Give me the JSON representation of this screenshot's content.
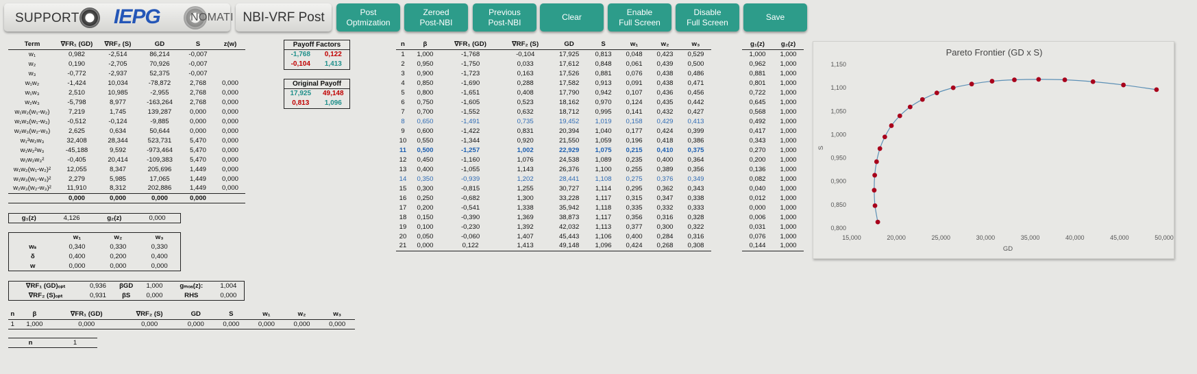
{
  "header": {
    "support_label": "SUPPORT",
    "iepg_label": "IEPG",
    "nomati_label": "NOMATI",
    "title": "NBI-VRF Post",
    "buttons": [
      "Post\nOptmization",
      "Zeroed\nPost-NBI",
      "Previous\nPost-NBI",
      "Clear",
      "Enable\nFull Screen",
      "Disable\nFull Screen",
      "Save"
    ]
  },
  "terms": {
    "headers": [
      "Term",
      "∇FR₁ (GD)",
      "∇RF₂ (S)",
      "GD",
      "S",
      "z(w)"
    ],
    "rows": [
      [
        "w₁",
        "0,982",
        "-2,514",
        "86,214",
        "-0,007",
        ""
      ],
      [
        "w₂",
        "0,190",
        "-2,705",
        "70,926",
        "-0,007",
        ""
      ],
      [
        "w₃",
        "-0,772",
        "-2,937",
        "52,375",
        "-0,007",
        ""
      ],
      [
        "w₁w₂",
        "-1,424",
        "10,034",
        "-78,872",
        "2,768",
        "0,000"
      ],
      [
        "w₁w₃",
        "2,510",
        "10,985",
        "-2,955",
        "2,768",
        "0,000"
      ],
      [
        "w₂w₃",
        "-5,798",
        "8,977",
        "-163,264",
        "2,768",
        "0,000"
      ],
      [
        "w₁w₂(w₁-w₂)",
        "7,219",
        "1,745",
        "139,287",
        "0,000",
        "0,000"
      ],
      [
        "w₁w₃(w₁-w₃)",
        "-0,512",
        "-0,124",
        "-9,885",
        "0,000",
        "0,000"
      ],
      [
        "w₂w₃(w₂-w₃)",
        "2,625",
        "0,634",
        "50,644",
        "0,000",
        "0,000"
      ],
      [
        "w₁²w₂w₃",
        "32,408",
        "28,344",
        "523,731",
        "5,470",
        "0,000"
      ],
      [
        "w₁w₂²w₃",
        "-45,188",
        "9,592",
        "-973,464",
        "5,470",
        "0,000"
      ],
      [
        "w₁w₂w₃²",
        "-0,405",
        "20,414",
        "-109,383",
        "5,470",
        "0,000"
      ],
      [
        "w₁w₂(w₁-w₂)²",
        "12,055",
        "8,347",
        "205,696",
        "1,449",
        "0,000"
      ],
      [
        "w₁w₃(w₁-w₃)²",
        "2,279",
        "5,985",
        "17,065",
        "1,449",
        "0,000"
      ],
      [
        "w₂w₃(w₂-w₃)²",
        "11,910",
        "8,312",
        "202,886",
        "1,449",
        "0,000"
      ]
    ],
    "totals": [
      "",
      "0,000",
      "0,000",
      "0,000",
      "0,000",
      ""
    ]
  },
  "g_box": {
    "g1_label": "g₁(z)",
    "g1_value": "4,126",
    "g2_label": "g₂(z)",
    "g2_value": "0,000"
  },
  "w_box": {
    "headers": [
      "",
      "w₁",
      "w₂",
      "w₃"
    ],
    "rows": [
      [
        "wₛ",
        "0,340",
        "0,330",
        "0,330"
      ],
      [
        "δ",
        "0,400",
        "0,200",
        "0,400"
      ],
      [
        "w",
        "0,000",
        "0,000",
        "0,000"
      ]
    ]
  },
  "opt_box": {
    "rows": [
      [
        "∇RF₁ (GD)ₒₚₜ",
        "0,936",
        "βGD",
        "1,000",
        "gₘₒₐ(z):",
        "1,004"
      ],
      [
        "∇RF₂ (S)ₒₚₜ",
        "0,931",
        "βS",
        "0,000",
        "RHS",
        "0,000"
      ]
    ]
  },
  "n_table": {
    "headers": [
      "n",
      "β",
      "∇FR₁ (GD)",
      "∇RF₂ (S)",
      "GD",
      "S",
      "w₁",
      "w₂",
      "w₃"
    ],
    "row": [
      "1",
      "1,000",
      "0,000",
      "0,000",
      "0,000",
      "0,000",
      "0,000",
      "0,000",
      "0,000"
    ]
  },
  "n_count": {
    "label": "n",
    "value": "1"
  },
  "payoff": {
    "title": "Payoff Factors",
    "r1": [
      "-1,768",
      "0,122"
    ],
    "r2": [
      "-0,104",
      "1,413"
    ]
  },
  "orig_payoff": {
    "title": "Original Payoff",
    "r1": [
      "17,925",
      "49,148"
    ],
    "r2": [
      "0,813",
      "1,096"
    ]
  },
  "main": {
    "headers": [
      "n",
      "β",
      "∇FR₁ (GD)",
      "∇RF₂ (S)",
      "GD",
      "S",
      "w₁",
      "w₂",
      "w₃"
    ],
    "rows": [
      [
        "1",
        "1,000",
        "-1,768",
        "-0,104",
        "17,925",
        "0,813",
        "0,048",
        "0,423",
        "0,529"
      ],
      [
        "2",
        "0,950",
        "-1,750",
        "0,033",
        "17,612",
        "0,848",
        "0,061",
        "0,439",
        "0,500"
      ],
      [
        "3",
        "0,900",
        "-1,723",
        "0,163",
        "17,526",
        "0,881",
        "0,076",
        "0,438",
        "0,486"
      ],
      [
        "4",
        "0,850",
        "-1,690",
        "0,288",
        "17,582",
        "0,913",
        "0,091",
        "0,438",
        "0,471"
      ],
      [
        "5",
        "0,800",
        "-1,651",
        "0,408",
        "17,790",
        "0,942",
        "0,107",
        "0,436",
        "0,456"
      ],
      [
        "6",
        "0,750",
        "-1,605",
        "0,523",
        "18,162",
        "0,970",
        "0,124",
        "0,435",
        "0,442"
      ],
      [
        "7",
        "0,700",
        "-1,552",
        "0,632",
        "18,712",
        "0,995",
        "0,141",
        "0,432",
        "0,427"
      ],
      [
        "8",
        "0,650",
        "-1,491",
        "0,735",
        "19,452",
        "1,019",
        "0,158",
        "0,429",
        "0,413"
      ],
      [
        "9",
        "0,600",
        "-1,422",
        "0,831",
        "20,394",
        "1,040",
        "0,177",
        "0,424",
        "0,399"
      ],
      [
        "10",
        "0,550",
        "-1,344",
        "0,920",
        "21,550",
        "1,059",
        "0,196",
        "0,418",
        "0,386"
      ],
      [
        "11",
        "0,500",
        "-1,257",
        "1,002",
        "22,929",
        "1,075",
        "0,215",
        "0,410",
        "0,375"
      ],
      [
        "12",
        "0,450",
        "-1,160",
        "1,076",
        "24,538",
        "1,089",
        "0,235",
        "0,400",
        "0,364"
      ],
      [
        "13",
        "0,400",
        "-1,055",
        "1,143",
        "26,376",
        "1,100",
        "0,255",
        "0,389",
        "0,356"
      ],
      [
        "14",
        "0,350",
        "-0,939",
        "1,202",
        "28,441",
        "1,108",
        "0,275",
        "0,376",
        "0,349"
      ],
      [
        "15",
        "0,300",
        "-0,815",
        "1,255",
        "30,727",
        "1,114",
        "0,295",
        "0,362",
        "0,343"
      ],
      [
        "16",
        "0,250",
        "-0,682",
        "1,300",
        "33,228",
        "1,117",
        "0,315",
        "0,347",
        "0,338"
      ],
      [
        "17",
        "0,200",
        "-0,541",
        "1,338",
        "35,942",
        "1,118",
        "0,335",
        "0,332",
        "0,333"
      ],
      [
        "18",
        "0,150",
        "-0,390",
        "1,369",
        "38,873",
        "1,117",
        "0,356",
        "0,316",
        "0,328"
      ],
      [
        "19",
        "0,100",
        "-0,230",
        "1,392",
        "42,032",
        "1,113",
        "0,377",
        "0,300",
        "0,322"
      ],
      [
        "20",
        "0,050",
        "-0,060",
        "1,407",
        "45,443",
        "1,106",
        "0,400",
        "0,284",
        "0,316"
      ],
      [
        "21",
        "0,000",
        "0,122",
        "1,413",
        "49,148",
        "1,096",
        "0,424",
        "0,268",
        "0,308"
      ]
    ],
    "styles": {
      "8": "blue",
      "11": "bb",
      "14": "blue"
    }
  },
  "g_table": {
    "headers": [
      "g₁(z)",
      "g₂(z)"
    ],
    "rows": [
      [
        "1,000",
        "1,000"
      ],
      [
        "0,962",
        "1,000"
      ],
      [
        "0,881",
        "1,000"
      ],
      [
        "0,801",
        "1,000"
      ],
      [
        "0,722",
        "1,000"
      ],
      [
        "0,645",
        "1,000"
      ],
      [
        "0,568",
        "1,000"
      ],
      [
        "0,492",
        "1,000"
      ],
      [
        "0,417",
        "1,000"
      ],
      [
        "0,343",
        "1,000"
      ],
      [
        "0,270",
        "1,000"
      ],
      [
        "0,200",
        "1,000"
      ],
      [
        "0,136",
        "1,000"
      ],
      [
        "0,082",
        "1,000"
      ],
      [
        "0,040",
        "1,000"
      ],
      [
        "0,012",
        "1,000"
      ],
      [
        "0,000",
        "1,000"
      ],
      [
        "0,006",
        "1,000"
      ],
      [
        "0,031",
        "1,000"
      ],
      [
        "0,076",
        "1,000"
      ],
      [
        "0,144",
        "1,000"
      ]
    ]
  },
  "colors": {
    "button": "#2d9c8a",
    "marker": "#a8001b",
    "line": "#5b8fb5",
    "blue_row": "#2e6ab3",
    "red_val": "#c00000",
    "teal_val": "#1f8f8a"
  },
  "chart_data": {
    "type": "scatter",
    "title": "Pareto Frontier (GD x S)",
    "xlabel": "GD",
    "ylabel": "S",
    "xlim": [
      15000,
      50000
    ],
    "ylim": [
      0.8,
      1.15
    ],
    "xticks": [
      "15,000",
      "20,000",
      "25,000",
      "30,000",
      "35,000",
      "40,000",
      "45,000",
      "50,000"
    ],
    "yticks": [
      "0,800",
      "0,850",
      "0,900",
      "0,950",
      "1,000",
      "1,050",
      "1,100",
      "1,150"
    ],
    "x": [
      17925,
      17612,
      17526,
      17582,
      17790,
      18162,
      18712,
      19452,
      20394,
      21550,
      22929,
      24538,
      26376,
      28441,
      30727,
      33228,
      35942,
      38873,
      42032,
      45443,
      49148
    ],
    "y": [
      0.813,
      0.848,
      0.881,
      0.913,
      0.942,
      0.97,
      0.995,
      1.019,
      1.04,
      1.059,
      1.075,
      1.089,
      1.1,
      1.108,
      1.114,
      1.117,
      1.118,
      1.117,
      1.113,
      1.106,
      1.096
    ],
    "grid": false,
    "smooth_line": true,
    "markers": true
  }
}
